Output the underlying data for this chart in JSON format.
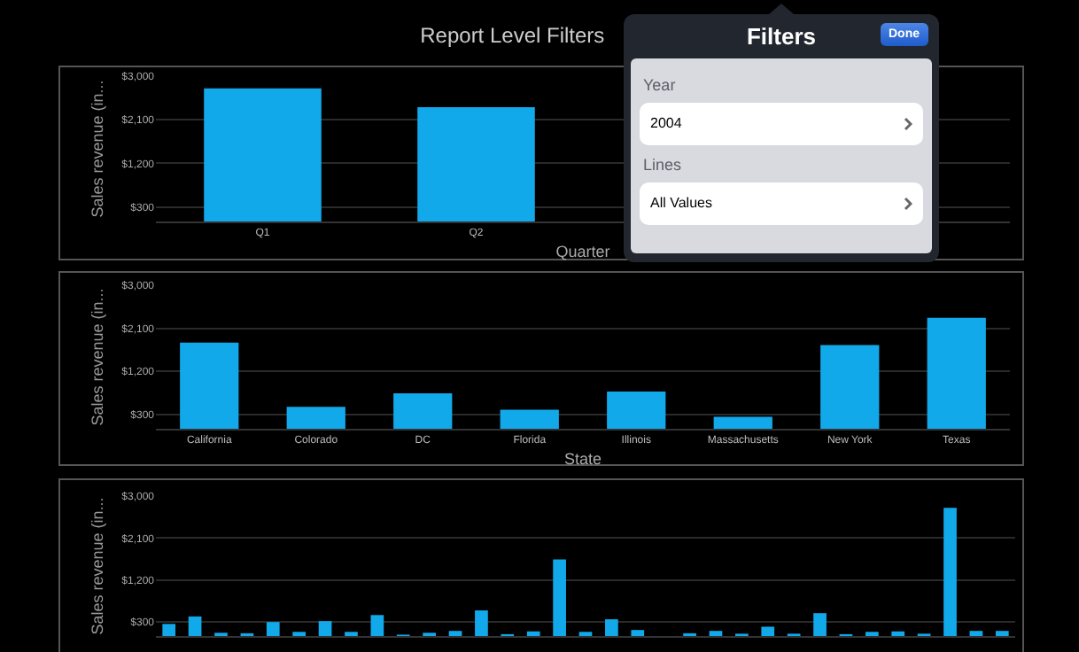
{
  "chart_data": [
    {
      "type": "bar",
      "title": "Report Level Filters",
      "xlabel": "Quarter",
      "ylabel": "Sales revenue (in...",
      "categories": [
        "Q1",
        "Q2",
        null,
        null
      ],
      "values": [
        2750,
        2360,
        null,
        null
      ],
      "color": "#12a9ea",
      "ylim": [
        0,
        3000
      ],
      "yticks": [
        {
          "value": 300,
          "label": "$300"
        },
        {
          "value": 1200,
          "label": "$1,200"
        },
        {
          "value": 2100,
          "label": "$2,100"
        },
        {
          "value": 3000,
          "label": "$3,000"
        }
      ],
      "grid": "y"
    },
    {
      "type": "bar",
      "xlabel": "State",
      "ylabel": "Sales revenue (in...",
      "categories": [
        "California",
        "Colorado",
        "DC",
        "Florida",
        "Illinois",
        "Massachusetts",
        "New York",
        "Texas"
      ],
      "values": [
        1800,
        460,
        740,
        400,
        780,
        250,
        1750,
        2320
      ],
      "color": "#12a9ea",
      "ylim": [
        0,
        3000
      ],
      "yticks": [
        {
          "value": 300,
          "label": "$300"
        },
        {
          "value": 1200,
          "label": "$1,200"
        },
        {
          "value": 2100,
          "label": "$2,100"
        },
        {
          "value": 3000,
          "label": "$3,000"
        }
      ],
      "grid": "y"
    },
    {
      "type": "bar",
      "ylabel": "Sales revenue (in...",
      "categories": [
        null,
        null,
        null,
        null,
        null,
        null,
        null,
        null,
        null,
        null,
        null,
        null,
        null,
        null,
        null,
        null,
        null,
        null,
        null,
        null,
        null,
        null,
        null,
        null,
        null,
        null,
        null,
        null,
        null,
        null,
        null,
        null,
        null
      ],
      "values": [
        260,
        420,
        70,
        60,
        300,
        90,
        320,
        90,
        450,
        30,
        70,
        110,
        550,
        40,
        100,
        1640,
        90,
        360,
        130,
        0,
        60,
        110,
        50,
        200,
        50,
        490,
        40,
        90,
        100,
        50,
        2750,
        110,
        110
      ],
      "color": "#12a9ea",
      "ylim": [
        0,
        3000
      ],
      "yticks": [
        {
          "value": 300,
          "label": "$300"
        },
        {
          "value": 1200,
          "label": "$1,200"
        },
        {
          "value": 2100,
          "label": "$2,100"
        },
        {
          "value": 3000,
          "label": "$3,000"
        }
      ],
      "grid": "y",
      "tick_labels": "y"
    },
    {
      "type": "other",
      "title": "Filters",
      "annotations": [
        "Done",
        "Year",
        "2004",
        "Lines",
        "All Values"
      ]
    }
  ]
}
